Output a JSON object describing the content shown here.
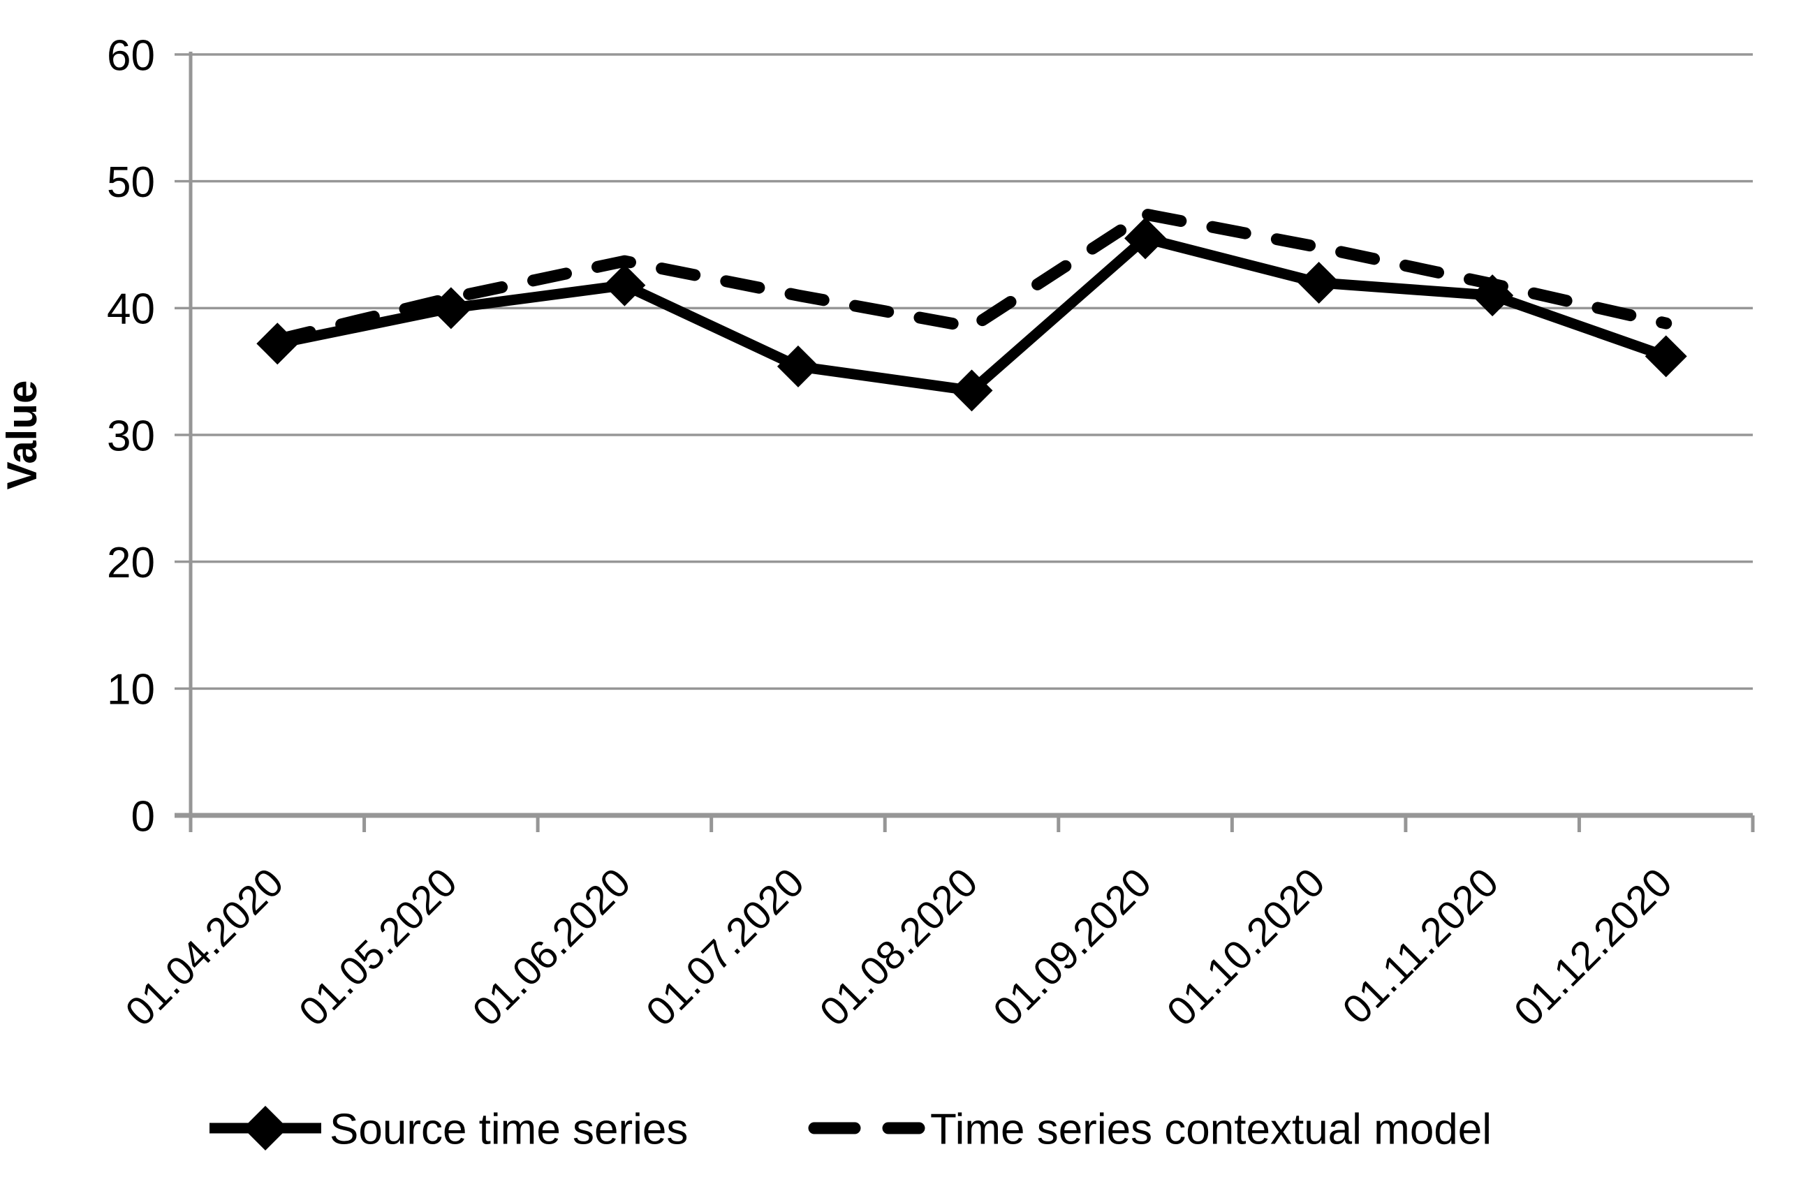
{
  "chart_data": {
    "type": "line",
    "title": "",
    "xlabel": "",
    "ylabel": "Value",
    "categories": [
      "01.04.2020",
      "01.05.2020",
      "01.06.2020",
      "01.07.2020",
      "01.08.2020",
      "01.09.2020",
      "01.10.2020",
      "01.11.2020",
      "01.12.2020"
    ],
    "series": [
      {
        "name": "Source time series",
        "line_style": "solid",
        "marker": "diamond",
        "color": "#000000",
        "values": [
          37.2,
          40.0,
          41.8,
          35.4,
          33.5,
          45.5,
          42.0,
          41.0,
          36.2
        ]
      },
      {
        "name": "Time series contextual model",
        "line_style": "dashed",
        "marker": "none",
        "color": "#000000",
        "values": [
          37.5,
          40.8,
          43.7,
          41.0,
          38.5,
          47.4,
          44.8,
          41.9,
          38.8
        ]
      }
    ],
    "ylim": [
      0,
      60
    ],
    "yticks": [
      0,
      10,
      20,
      30,
      40,
      50,
      60
    ],
    "grid": "horizontal",
    "legend_position": "bottom",
    "x_label_rotation_deg": 45
  },
  "colors": {
    "series_line": "#000000",
    "grid_line": "#969696",
    "axis_line": "#969696",
    "text": "#000000",
    "background": "#ffffff"
  }
}
